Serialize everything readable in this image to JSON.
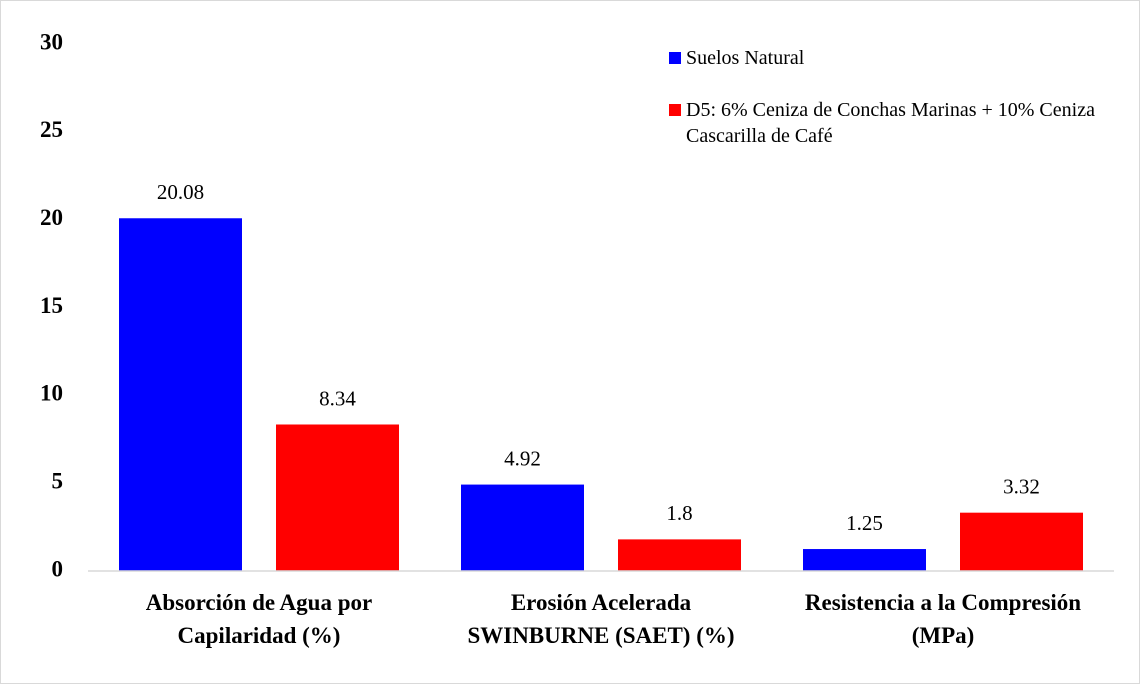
{
  "chart_data": {
    "type": "bar",
    "categories": [
      "Absorción de Agua por Capilaridad (%)",
      "Erosión Acelerada SWINBURNE (SAET) (%)",
      "Resistencia a la Compresión (MPa)"
    ],
    "series": [
      {
        "name": "Suelos Natural",
        "color": "#0000ff",
        "values": [
          20.08,
          4.92,
          1.25
        ]
      },
      {
        "name": "D5: 6% Ceniza de Conchas Marinas + 10% Ceniza Cascarilla de Café",
        "color": "#ff0000",
        "values": [
          8.34,
          1.8,
          3.32
        ]
      }
    ],
    "ylim": [
      0,
      30
    ],
    "yticks": [
      0,
      5,
      10,
      15,
      20,
      25,
      30
    ],
    "grid": false,
    "legend": "top-right"
  }
}
